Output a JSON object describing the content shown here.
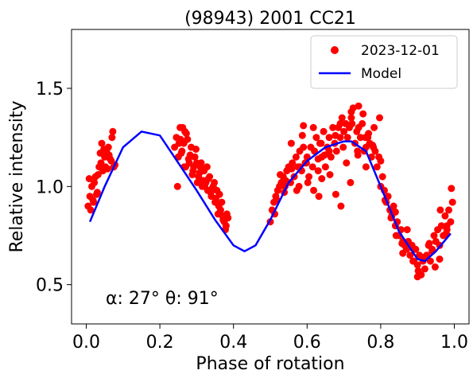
{
  "chart_data": {
    "type": "scatter",
    "title": "(98943) 2001 CC21",
    "xlabel": "Phase of rotation",
    "ylabel": "Relative intensity",
    "xlim": [
      -0.04,
      1.04
    ],
    "ylim": [
      0.3,
      1.8
    ],
    "xticks": [
      0.0,
      0.2,
      0.4,
      0.6,
      0.8,
      1.0
    ],
    "xtick_labels": [
      "0.0",
      "0.2",
      "0.4",
      "0.6",
      "0.8",
      "1.0"
    ],
    "yticks": [
      0.5,
      1.0,
      1.5
    ],
    "ytick_labels": [
      "0.5",
      "1.0",
      "1.5"
    ],
    "grid": false,
    "legend_position": "top-right",
    "annotation": "α: 27° θ: 91°",
    "series": [
      {
        "name": "2023-12-01",
        "kind": "scatter",
        "color": "#ff0000",
        "x": [
          0.005,
          0.01,
          0.015,
          0.02,
          0.025,
          0.03,
          0.035,
          0.04,
          0.045,
          0.05,
          0.055,
          0.06,
          0.065,
          0.07,
          0.075,
          0.012,
          0.022,
          0.032,
          0.042,
          0.052,
          0.062,
          0.072,
          0.008,
          0.028,
          0.048,
          0.068,
          0.018,
          0.038,
          0.058,
          0.078,
          0.24,
          0.245,
          0.25,
          0.255,
          0.26,
          0.265,
          0.27,
          0.275,
          0.28,
          0.285,
          0.29,
          0.295,
          0.3,
          0.305,
          0.31,
          0.315,
          0.32,
          0.325,
          0.33,
          0.335,
          0.34,
          0.345,
          0.35,
          0.355,
          0.36,
          0.365,
          0.37,
          0.375,
          0.38,
          0.385,
          0.248,
          0.258,
          0.268,
          0.278,
          0.288,
          0.298,
          0.308,
          0.318,
          0.328,
          0.338,
          0.348,
          0.358,
          0.368,
          0.378,
          0.252,
          0.262,
          0.272,
          0.282,
          0.292,
          0.302,
          0.312,
          0.322,
          0.332,
          0.342,
          0.352,
          0.362,
          0.372,
          0.382,
          0.256,
          0.266,
          0.5,
          0.505,
          0.51,
          0.515,
          0.52,
          0.525,
          0.53,
          0.535,
          0.54,
          0.545,
          0.55,
          0.555,
          0.56,
          0.565,
          0.57,
          0.575,
          0.58,
          0.585,
          0.59,
          0.595,
          0.6,
          0.605,
          0.61,
          0.615,
          0.62,
          0.625,
          0.63,
          0.635,
          0.64,
          0.645,
          0.65,
          0.655,
          0.66,
          0.665,
          0.67,
          0.675,
          0.68,
          0.685,
          0.69,
          0.695,
          0.7,
          0.705,
          0.71,
          0.715,
          0.72,
          0.725,
          0.73,
          0.735,
          0.74,
          0.745,
          0.75,
          0.755,
          0.76,
          0.765,
          0.77,
          0.775,
          0.78,
          0.785,
          0.79,
          0.795,
          0.8,
          0.512,
          0.527,
          0.542,
          0.557,
          0.572,
          0.587,
          0.602,
          0.617,
          0.632,
          0.647,
          0.662,
          0.677,
          0.692,
          0.707,
          0.722,
          0.737,
          0.752,
          0.767,
          0.782,
          0.797,
          0.518,
          0.538,
          0.558,
          0.578,
          0.598,
          0.618,
          0.638,
          0.658,
          0.678,
          0.698,
          0.718,
          0.738,
          0.758,
          0.778,
          0.59,
          0.64,
          0.69,
          0.74,
          0.66,
          0.72,
          0.76,
          0.8,
          0.58,
          0.63,
          0.805,
          0.81,
          0.815,
          0.82,
          0.825,
          0.83,
          0.835,
          0.84,
          0.845,
          0.85,
          0.855,
          0.86,
          0.865,
          0.87,
          0.875,
          0.88,
          0.885,
          0.89,
          0.895,
          0.9,
          0.905,
          0.91,
          0.915,
          0.92,
          0.925,
          0.93,
          0.935,
          0.94,
          0.945,
          0.95,
          0.955,
          0.96,
          0.965,
          0.97,
          0.975,
          0.98,
          0.985,
          0.99,
          0.995,
          0.812,
          0.828,
          0.842,
          0.858,
          0.872,
          0.888,
          0.902,
          0.918,
          0.932,
          0.948,
          0.962,
          0.978,
          0.992,
          0.84,
          0.86,
          0.88,
          0.9,
          0.94,
          0.96,
          0.98
        ],
        "y": [
          0.9,
          0.95,
          1.0,
          0.92,
          1.05,
          0.97,
          1.1,
          1.12,
          1.08,
          1.15,
          1.18,
          1.2,
          1.14,
          1.25,
          1.1,
          0.88,
          1.02,
          1.06,
          1.22,
          1.1,
          1.16,
          1.28,
          1.04,
          0.96,
          1.19,
          1.13,
          0.93,
          1.17,
          1.09,
          1.11,
          1.2,
          1.25,
          1.15,
          1.3,
          1.18,
          1.22,
          1.1,
          1.24,
          1.12,
          1.2,
          1.08,
          1.15,
          1.12,
          1.05,
          1.1,
          1.0,
          1.08,
          1.02,
          0.98,
          1.05,
          0.95,
          1.0,
          0.92,
          0.98,
          0.9,
          0.88,
          0.85,
          0.82,
          0.8,
          0.84,
          1.0,
          1.17,
          1.28,
          1.14,
          1.06,
          1.19,
          1.07,
          1.03,
          1.1,
          0.97,
          1.02,
          0.86,
          0.92,
          0.78,
          1.22,
          1.3,
          1.27,
          1.16,
          1.1,
          1.02,
          1.12,
          1.0,
          1.04,
          0.99,
          0.94,
          0.96,
          0.83,
          0.86,
          1.24,
          1.1,
          0.82,
          0.88,
          0.92,
          0.95,
          0.98,
          1.0,
          1.02,
          1.05,
          1.0,
          1.08,
          1.1,
          1.02,
          1.12,
          1.05,
          1.15,
          1.1,
          1.18,
          1.08,
          1.2,
          1.12,
          1.15,
          1.05,
          1.2,
          1.1,
          1.18,
          1.25,
          1.08,
          1.22,
          1.15,
          1.28,
          1.1,
          1.2,
          1.25,
          1.15,
          1.3,
          1.22,
          1.18,
          1.3,
          1.25,
          1.35,
          1.28,
          1.32,
          1.25,
          1.3,
          1.35,
          1.4,
          1.22,
          1.28,
          1.3,
          1.25,
          1.32,
          1.18,
          1.2,
          1.25,
          1.22,
          1.15,
          1.2,
          1.18,
          1.1,
          1.15,
          1.0,
          0.86,
          1.06,
          1.03,
          1.22,
          0.98,
          1.26,
          1.02,
          1.3,
          0.95,
          1.16,
          1.06,
          1.26,
          0.9,
          1.12,
          1.32,
          1.18,
          1.37,
          1.27,
          1.3,
          1.35,
          0.93,
          0.97,
          1.09,
          1.0,
          1.12,
          0.98,
          1.22,
          1.17,
          0.96,
          1.2,
          1.02,
          1.16,
          1.25,
          1.21,
          1.31,
          1.04,
          1.32,
          1.41,
          1.18,
          1.38,
          1.1,
          1.13,
          1.1,
          1.14,
          1.05,
          0.98,
          0.92,
          0.95,
          0.88,
          0.85,
          0.9,
          0.8,
          0.82,
          0.75,
          0.78,
          0.72,
          0.7,
          0.68,
          0.72,
          0.65,
          0.7,
          0.62,
          0.68,
          0.6,
          0.65,
          0.55,
          0.62,
          0.58,
          0.65,
          0.7,
          0.62,
          0.68,
          0.75,
          0.72,
          0.78,
          0.7,
          0.8,
          0.75,
          0.85,
          0.78,
          0.88,
          0.82,
          0.92,
          0.93,
          0.84,
          0.75,
          0.71,
          0.78,
          0.62,
          0.57,
          0.64,
          0.71,
          0.59,
          0.88,
          0.76,
          0.99,
          0.87,
          0.66,
          0.69,
          0.54,
          0.67,
          0.63,
          0.8
        ]
      },
      {
        "name": "Model",
        "kind": "line",
        "color": "#0000ff",
        "x": [
          0.01,
          0.05,
          0.1,
          0.15,
          0.2,
          0.25,
          0.3,
          0.35,
          0.4,
          0.43,
          0.46,
          0.5,
          0.55,
          0.6,
          0.65,
          0.7,
          0.72,
          0.76,
          0.8,
          0.85,
          0.9,
          0.92,
          0.95,
          0.99
        ],
        "y": [
          0.82,
          1.0,
          1.2,
          1.28,
          1.26,
          1.12,
          0.98,
          0.83,
          0.7,
          0.67,
          0.7,
          0.83,
          1.02,
          1.13,
          1.2,
          1.23,
          1.23,
          1.18,
          1.0,
          0.77,
          0.63,
          0.62,
          0.67,
          0.76
        ]
      }
    ]
  }
}
